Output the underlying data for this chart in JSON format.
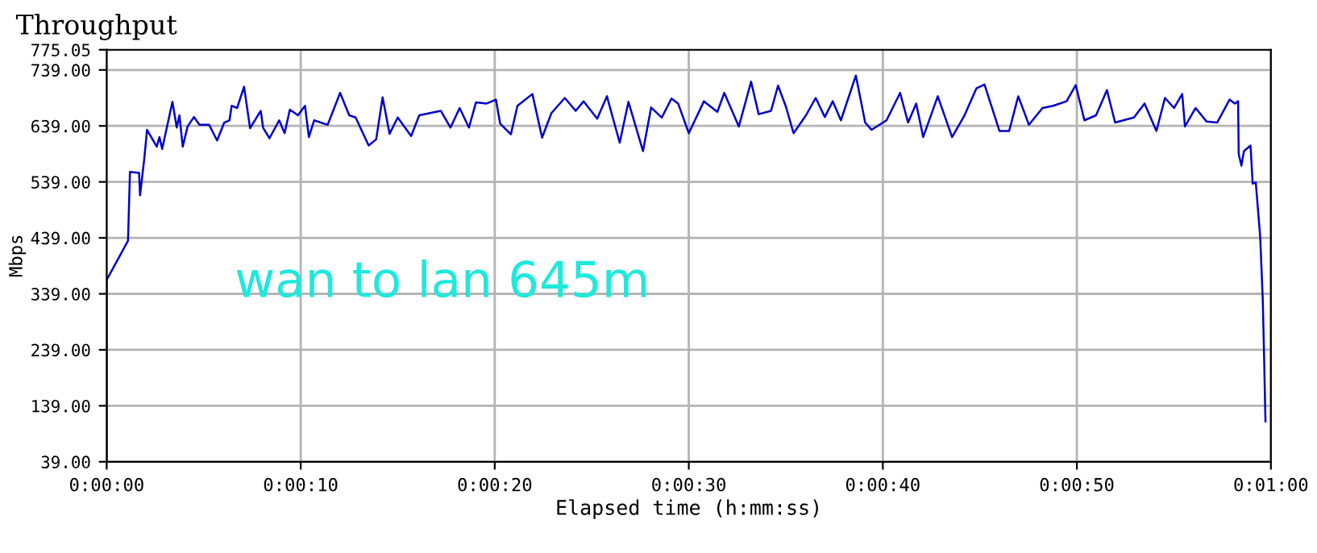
{
  "chart_data": {
    "type": "line",
    "title": "Throughput",
    "xlabel": "Elapsed time (h:mm:ss)",
    "ylabel": "Mbps",
    "annotations": [
      "wan to lan 645m"
    ],
    "xlim": [
      0,
      60
    ],
    "ylim": [
      39,
      775.05
    ],
    "xticks": [
      {
        "value": 0,
        "label": "0:00:00"
      },
      {
        "value": 10,
        "label": "0:00:10"
      },
      {
        "value": 20,
        "label": "0:00:20"
      },
      {
        "value": 30,
        "label": "0:00:30"
      },
      {
        "value": 40,
        "label": "0:00:40"
      },
      {
        "value": 50,
        "label": "0:00:50"
      },
      {
        "value": 60,
        "label": "0:01:00"
      }
    ],
    "yticks": [
      {
        "value": 39,
        "label": "39.00"
      },
      {
        "value": 139,
        "label": "139.00"
      },
      {
        "value": 239,
        "label": "239.00"
      },
      {
        "value": 339,
        "label": "339.00"
      },
      {
        "value": 439,
        "label": "439.00"
      },
      {
        "value": 539,
        "label": "539.00"
      },
      {
        "value": 639,
        "label": "639.00"
      },
      {
        "value": 739,
        "label": "739.00"
      },
      {
        "value": 775.05,
        "label": "775.05"
      }
    ],
    "grid": true,
    "series": [
      {
        "color": "#0000cc",
        "x": [
          0,
          0,
          1.1,
          1.2,
          1.67,
          1.72,
          1.94,
          2.08,
          2.58,
          2.72,
          2.86,
          3.39,
          3.61,
          3.75,
          3.92,
          4.17,
          4.5,
          4.78,
          5.28,
          5.69,
          6.06,
          6.33,
          6.44,
          6.72,
          7.08,
          7.39,
          7.94,
          8.06,
          8.39,
          8.89,
          9.17,
          9.44,
          9.86,
          10.22,
          10.42,
          10.69,
          11.39,
          12.03,
          12.5,
          12.83,
          13.5,
          13.89,
          14.22,
          14.58,
          15.0,
          15.69,
          16.11,
          16.67,
          17.22,
          17.72,
          18.19,
          18.67,
          19.03,
          19.58,
          20.06,
          20.28,
          20.83,
          21.17,
          21.94,
          22.44,
          22.92,
          23.61,
          24.17,
          24.58,
          25.28,
          25.78,
          26.44,
          26.89,
          27.64,
          28.06,
          28.61,
          29.11,
          29.45,
          30.0,
          30.78,
          31.47,
          31.83,
          32.58,
          33.21,
          33.6,
          34.24,
          34.6,
          34.99,
          35.4,
          36.04,
          36.54,
          37.01,
          37.42,
          37.84,
          38.61,
          39.09,
          39.42,
          40.19,
          40.89,
          41.3,
          41.72,
          42.08,
          42.83,
          43.57,
          44.21,
          44.82,
          45.24,
          46.01,
          46.51,
          46.98,
          47.53,
          48.23,
          48.78,
          49.47,
          49.94,
          50.39,
          50.99,
          51.55,
          51.97,
          52.94,
          53.49,
          54.1,
          54.54,
          55.01,
          55.43,
          55.57,
          56.12,
          56.68,
          57.23,
          57.87,
          58.14,
          58.31,
          58.34,
          58.48,
          58.61,
          58.95,
          59.06,
          59.22,
          59.45,
          59.58,
          59.64,
          59.72
        ],
        "values": [
          39,
          364,
          434,
          557,
          555,
          515,
          581,
          632,
          602,
          619,
          598,
          682,
          636,
          658,
          602,
          638,
          655,
          641,
          641,
          613,
          645,
          649,
          675,
          671,
          709,
          635,
          666,
          636,
          617,
          649,
          626,
          668,
          658,
          675,
          619,
          649,
          641,
          698,
          658,
          654,
          604,
          615,
          690,
          625,
          654,
          621,
          658,
          662,
          666,
          636,
          671,
          636,
          681,
          679,
          686,
          643,
          624,
          675,
          696,
          618,
          662,
          689,
          666,
          683,
          652,
          692,
          609,
          682,
          594,
          672,
          654,
          688,
          679,
          626,
          683,
          664,
          698,
          638,
          718,
          660,
          666,
          711,
          675,
          626,
          658,
          689,
          655,
          683,
          649,
          729,
          645,
          632,
          649,
          698,
          645,
          679,
          619,
          692,
          619,
          658,
          706,
          713,
          630,
          630,
          692,
          641,
          671,
          675,
          683,
          712,
          649,
          658,
          703,
          645,
          654,
          679,
          630,
          689,
          671,
          696,
          638,
          671,
          647,
          645,
          686,
          679,
          683,
          589,
          568,
          594,
          604,
          536,
          538,
          440,
          329,
          241,
          111
        ]
      }
    ]
  }
}
